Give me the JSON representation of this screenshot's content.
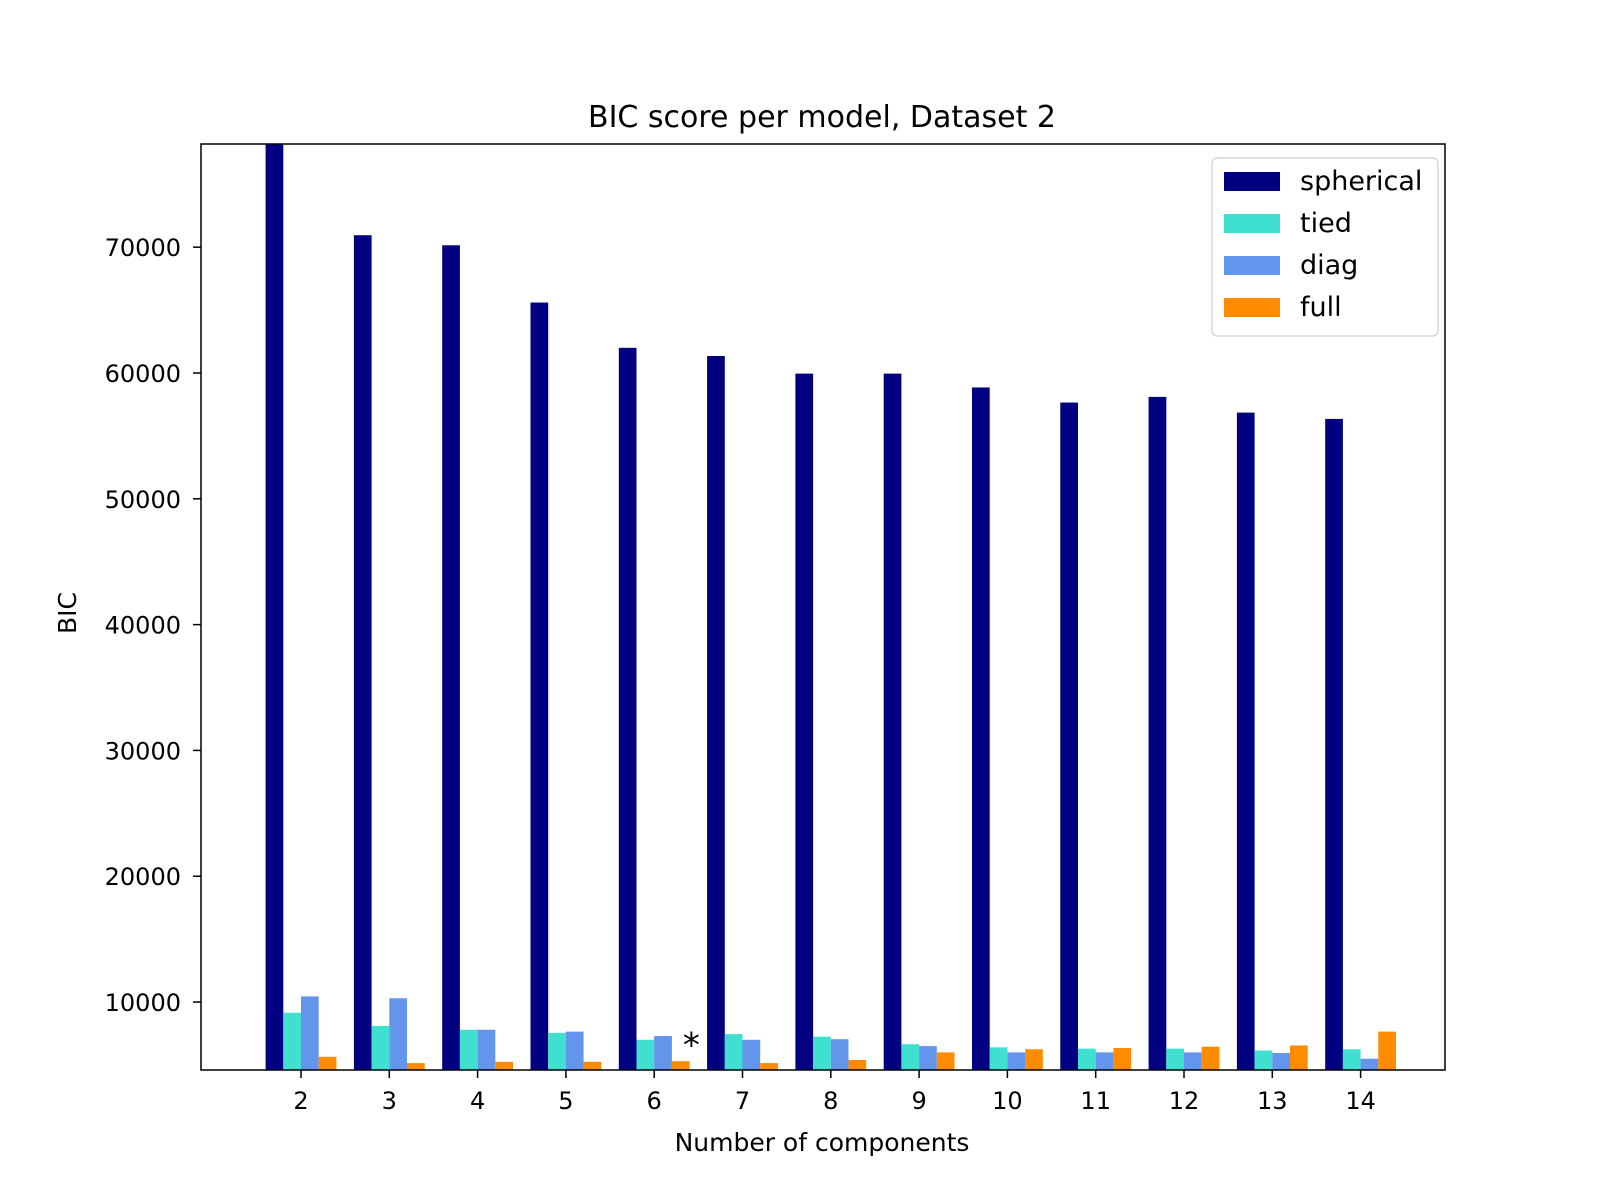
{
  "chart_data": {
    "type": "bar",
    "title": "BIC score per model, Dataset 2",
    "xlabel": "Number of components",
    "ylabel": "BIC",
    "categories": [
      "2",
      "3",
      "4",
      "5",
      "6",
      "7",
      "8",
      "9",
      "10",
      "11",
      "12",
      "13",
      "14"
    ],
    "series": [
      {
        "name": "spherical",
        "color": "#000080",
        "values": [
          78200,
          70950,
          70150,
          65600,
          62000,
          61350,
          59950,
          59950,
          58850,
          57650,
          58100,
          56850,
          56350
        ]
      },
      {
        "name": "tied",
        "color": "#40e0d0",
        "values": [
          9150,
          8100,
          7800,
          7550,
          7000,
          7450,
          7250,
          6650,
          6400,
          6300,
          6300,
          6150,
          6250
        ]
      },
      {
        "name": "diag",
        "color": "#6495ed",
        "values": [
          10450,
          10300,
          7800,
          7650,
          7300,
          7000,
          7050,
          6500,
          6000,
          6000,
          6000,
          5950,
          5500
        ]
      },
      {
        "name": "full",
        "color": "#ff8c00",
        "values": [
          5650,
          5150,
          5250,
          5250,
          5300,
          5150,
          5400,
          6000,
          6250,
          6350,
          6450,
          6550,
          7650
        ]
      }
    ],
    "ylim": [
      4600,
      78200
    ],
    "yticks": [
      10000,
      20000,
      30000,
      40000,
      50000,
      60000,
      70000
    ],
    "ytick_labels": [
      "10000",
      "20000",
      "30000",
      "40000",
      "50000",
      "60000",
      "70000"
    ],
    "xticks": [
      "2",
      "3",
      "4",
      "5",
      "6",
      "7",
      "8",
      "9",
      "10",
      "11",
      "12",
      "13",
      "14"
    ],
    "annotation": {
      "text": "*",
      "category": "6",
      "series": "full",
      "y": 7600
    },
    "legend_position": "top-right",
    "grid": false
  }
}
